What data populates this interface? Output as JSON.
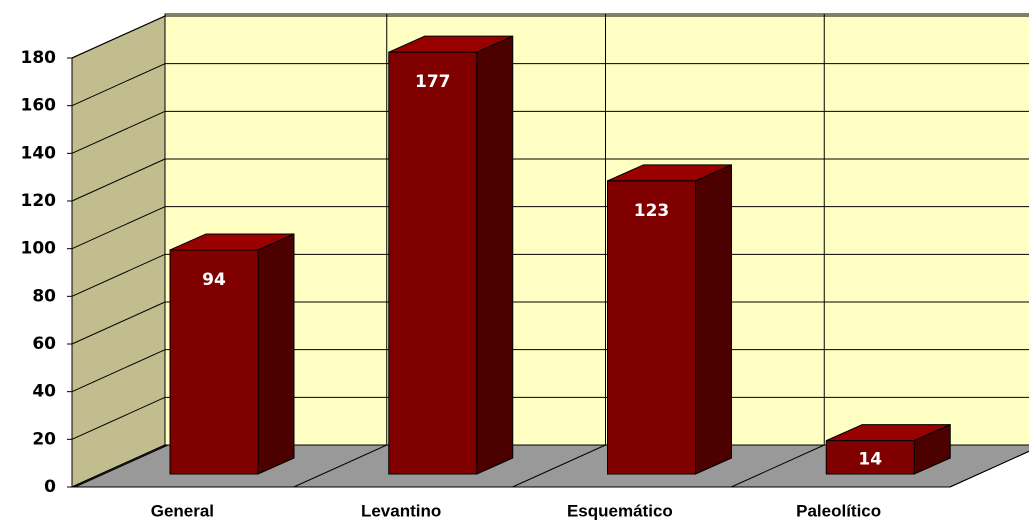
{
  "chart_data": {
    "type": "bar",
    "categories": [
      "General",
      "Levantino",
      "Esquemático",
      "Paleolítico"
    ],
    "values": [
      94,
      177,
      123,
      14
    ],
    "ylim": [
      0,
      180
    ],
    "yticks": [
      0,
      20,
      40,
      60,
      80,
      100,
      120,
      140,
      160,
      180
    ],
    "grid": true,
    "color": "#800000"
  }
}
